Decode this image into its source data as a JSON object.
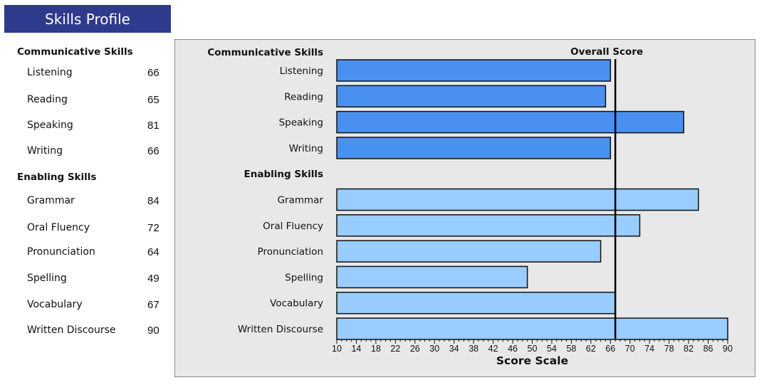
{
  "header": {
    "title": "Skills Profile"
  },
  "profile": {
    "sections": [
      {
        "name": "Communicative Skills",
        "items": [
          {
            "label": "Listening",
            "score": 66
          },
          {
            "label": "Reading",
            "score": 65
          },
          {
            "label": "Speaking",
            "score": 81
          },
          {
            "label": "Writing",
            "score": 66
          }
        ]
      },
      {
        "name": "Enabling Skills",
        "items": [
          {
            "label": "Grammar",
            "score": 84
          },
          {
            "label": "Oral Fluency",
            "score": 72
          },
          {
            "label": "Pronunciation",
            "score": 64
          },
          {
            "label": "Spelling",
            "score": 49
          },
          {
            "label": "Vocabulary",
            "score": 67
          },
          {
            "label": "Written Discourse",
            "score": 90
          }
        ]
      }
    ]
  },
  "chart_data": {
    "type": "bar",
    "orientation": "horizontal",
    "xlabel": "Score Scale",
    "xlim": [
      10,
      90
    ],
    "xticks": [
      10,
      14,
      18,
      22,
      26,
      30,
      34,
      38,
      42,
      46,
      50,
      54,
      58,
      62,
      66,
      70,
      74,
      78,
      82,
      86,
      90
    ],
    "overall_score_label": "Overall Score",
    "overall_score": 67,
    "groups": [
      {
        "name": "Communicative Skills",
        "color": "#4a90f0",
        "categories": [
          "Listening",
          "Reading",
          "Speaking",
          "Writing"
        ],
        "values": [
          66,
          65,
          81,
          66
        ]
      },
      {
        "name": "Enabling Skills",
        "color": "#99ccff",
        "categories": [
          "Grammar",
          "Oral Fluency",
          "Pronunciation",
          "Spelling",
          "Vocabulary",
          "Written Discourse"
        ],
        "values": [
          84,
          72,
          64,
          49,
          67,
          90
        ]
      }
    ]
  }
}
